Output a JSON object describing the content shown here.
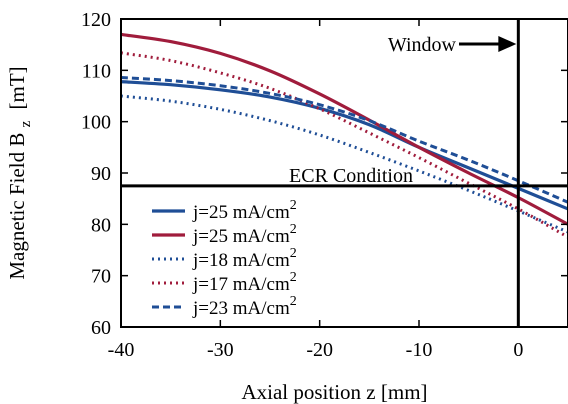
{
  "chart_data": {
    "type": "line",
    "xlabel": "Axial position z [mm]",
    "ylabel": "Magnetic Field B",
    "ylabel_sub": "z",
    "ylabel_unit": "[mT]",
    "xlim": [
      -40,
      5
    ],
    "ylim": [
      60,
      120
    ],
    "xticks": [
      -40,
      -30,
      -20,
      -10,
      0
    ],
    "yticks": [
      60,
      70,
      80,
      90,
      100,
      110,
      120
    ],
    "grid": false,
    "legend_position": "bottom-left",
    "annotations": {
      "ecr_label": "ECR Condition",
      "ecr_value": 87.5,
      "window_label": "Window",
      "window_position": 0
    },
    "series": [
      {
        "name_main": "j=25 mA/cm",
        "name_sup": "2",
        "color": "#1f4e96",
        "style": "solid",
        "x": [
          -40,
          -35,
          -30,
          -25,
          -20,
          -15,
          -10,
          -5,
          0,
          5
        ],
        "y": [
          107.8,
          107.2,
          106.2,
          104.8,
          102.6,
          99.4,
          95.0,
          91.0,
          87.0,
          83.0
        ]
      },
      {
        "name_main": "j=25 mA/cm",
        "name_sup": "2",
        "color": "#a01c3c",
        "style": "solid",
        "x": [
          -40,
          -35,
          -30,
          -25,
          -20,
          -15,
          -10,
          -5,
          0,
          5
        ],
        "y": [
          117.0,
          115.6,
          113.3,
          109.9,
          105.4,
          100.3,
          95.0,
          90.0,
          85.2,
          80.0
        ]
      },
      {
        "name_main": "j=18 mA/cm",
        "name_sup": "2",
        "color": "#1f4e96",
        "style": "dotted",
        "x": [
          -40,
          -35,
          -30,
          -25,
          -20,
          -15,
          -10,
          -5,
          0,
          5
        ],
        "y": [
          105.0,
          104.0,
          102.4,
          100.2,
          97.4,
          94.0,
          90.4,
          86.6,
          82.6,
          78.5
        ]
      },
      {
        "name_main": "j=17 mA/cm",
        "name_sup": "2",
        "color": "#a01c3c",
        "style": "dotted",
        "x": [
          -40,
          -35,
          -30,
          -25,
          -20,
          -15,
          -10,
          -5,
          0,
          5
        ],
        "y": [
          113.4,
          111.9,
          109.5,
          106.5,
          102.5,
          97.8,
          93.0,
          88.0,
          83.0,
          77.5
        ]
      },
      {
        "name_main": "j=23 mA/cm",
        "name_sup": "2",
        "color": "#1f4e96",
        "style": "dashed",
        "x": [
          -40,
          -35,
          -30,
          -25,
          -20,
          -15,
          -10,
          -5,
          0,
          5
        ],
        "y": [
          108.6,
          108.0,
          107.0,
          105.5,
          103.3,
          100.2,
          96.2,
          92.5,
          88.5,
          84.3
        ]
      }
    ]
  }
}
